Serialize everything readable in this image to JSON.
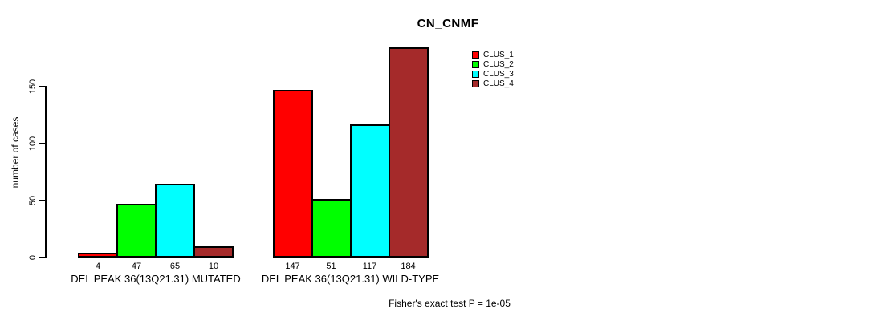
{
  "title": "CN_CNMF",
  "ylabel": "number of cases",
  "footnote": "Fisher's exact test P = 1e-05",
  "colors": {
    "clus_1": "#ff0000",
    "clus_2": "#00ff00",
    "clus_3": "#00ffff",
    "clus_4": "#a52a2a",
    "axis": "#000000",
    "background": "#ffffff"
  },
  "chart_data": {
    "type": "bar",
    "title": "CN_CNMF",
    "xlabel": "",
    "ylabel": "number of cases",
    "categories": [
      "DEL PEAK 36(13Q21.31) MUTATED",
      "DEL PEAK 36(13Q21.31) WILD-TYPE"
    ],
    "series": [
      {
        "name": "CLUS_1",
        "color": "#ff0000",
        "values": [
          4,
          147
        ]
      },
      {
        "name": "CLUS_2",
        "color": "#00ff00",
        "values": [
          47,
          51
        ]
      },
      {
        "name": "CLUS_3",
        "color": "#00ffff",
        "values": [
          65,
          117
        ]
      },
      {
        "name": "CLUS_4",
        "color": "#a52a2a",
        "values": [
          10,
          184
        ]
      }
    ],
    "bar_value_labels": [
      [
        "4",
        "47",
        "65",
        "10"
      ],
      [
        "147",
        "51",
        "117",
        "184"
      ]
    ],
    "yticks": [
      0,
      50,
      100,
      150
    ],
    "ylim": [
      0,
      189
    ],
    "grid": false,
    "legend_position": "inside-top-center-right",
    "legend_entries": [
      "CLUS_1",
      "CLUS_2",
      "CLUS_3",
      "CLUS_4"
    ],
    "annotation": "Fisher's exact test P = 1e-05"
  }
}
